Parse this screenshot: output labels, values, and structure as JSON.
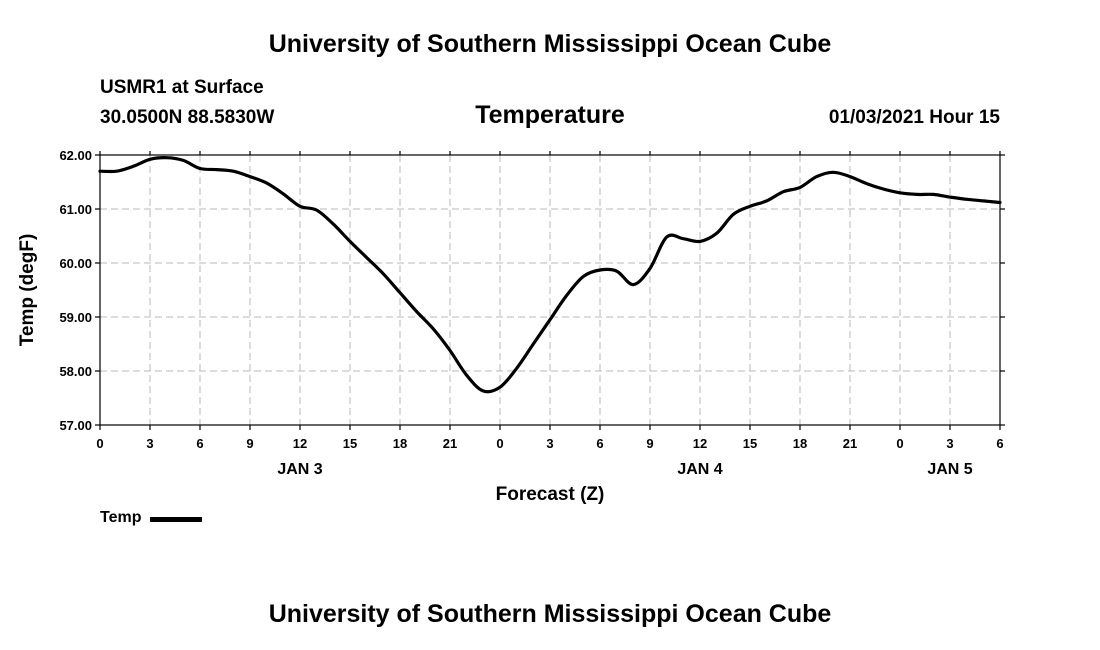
{
  "header": {
    "title": "University of Southern Mississippi Ocean Cube",
    "station": "USMR1 at Surface",
    "coords": "30.0500N 88.5830W",
    "datetime": "01/03/2021 Hour 15"
  },
  "footer": {
    "title": "University of Southern Mississippi Ocean Cube"
  },
  "chart_data": {
    "type": "line",
    "title": "Temperature",
    "xlabel": "Forecast (Z)",
    "ylabel": "Temp (degF)",
    "ylim": [
      57.0,
      62.0
    ],
    "yticks": [
      "57.00",
      "58.00",
      "59.00",
      "60.00",
      "61.00",
      "62.00"
    ],
    "xlim_hours": [
      0,
      54
    ],
    "xticks": [
      "0",
      "3",
      "6",
      "9",
      "12",
      "15",
      "18",
      "21",
      "0",
      "3",
      "6",
      "9",
      "12",
      "15",
      "18",
      "21",
      "0",
      "3",
      "6"
    ],
    "day_labels": [
      {
        "label": "JAN 3",
        "hour": 12
      },
      {
        "label": "JAN 4",
        "hour": 36
      },
      {
        "label": "JAN 5",
        "hour": 51
      }
    ],
    "grid": true,
    "legend": "bottom-left",
    "line_color": "#000000",
    "series": [
      {
        "name": "Temp",
        "x": [
          0,
          1,
          2,
          3,
          4,
          5,
          6,
          7,
          8,
          9,
          10,
          11,
          12,
          13,
          14,
          15,
          16,
          17,
          18,
          19,
          20,
          21,
          22,
          23,
          24,
          25,
          26,
          27,
          28,
          29,
          30,
          31,
          32,
          33,
          34,
          35,
          36,
          37,
          38,
          39,
          40,
          41,
          42,
          43,
          44,
          45,
          46,
          47,
          48,
          49,
          50,
          51,
          52,
          53,
          54
        ],
        "values": [
          61.7,
          61.7,
          61.79,
          61.92,
          61.95,
          61.9,
          61.75,
          61.73,
          61.7,
          61.6,
          61.48,
          61.28,
          61.05,
          60.98,
          60.72,
          60.4,
          60.1,
          59.8,
          59.45,
          59.1,
          58.78,
          58.38,
          57.92,
          57.63,
          57.7,
          58.05,
          58.5,
          58.95,
          59.4,
          59.75,
          59.87,
          59.85,
          59.6,
          59.9,
          60.48,
          60.45,
          60.4,
          60.55,
          60.9,
          61.05,
          61.15,
          61.32,
          61.4,
          61.6,
          61.68,
          61.6,
          61.47,
          61.37,
          61.3,
          61.27,
          61.27,
          61.22,
          61.18,
          61.15,
          61.12
        ]
      }
    ]
  }
}
